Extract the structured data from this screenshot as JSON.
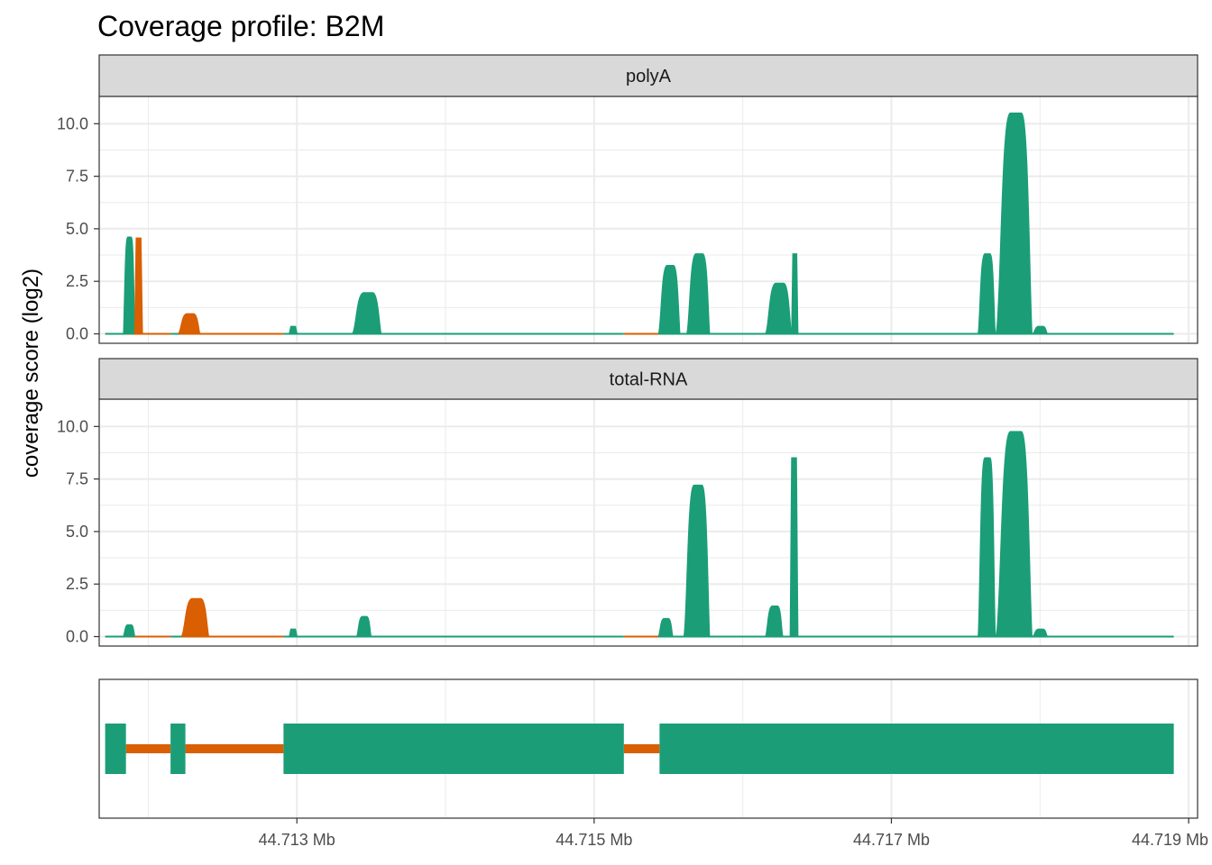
{
  "title": "Coverage profile: B2M",
  "ylabel": "coverage score (log2)",
  "colors": {
    "exon": "#1B9E77",
    "intron": "#D95F02",
    "strip_bg": "#D9D9D9",
    "grid": "#EBEBEB",
    "border": "#333333"
  },
  "chart_data": {
    "type": "area",
    "x_unit": "Mb",
    "xlim": [
      44.71167,
      44.71906
    ],
    "ylim": [
      -0.45,
      11.3
    ],
    "x_ticks": [
      44.713,
      44.715,
      44.717,
      44.719
    ],
    "x_tick_labels": [
      "44.713 Mb",
      "44.715 Mb",
      "44.717 Mb",
      "44.719 Mb"
    ],
    "y_ticks": [
      0,
      2.5,
      5,
      7.5,
      10
    ],
    "y_tick_labels": [
      "0.0",
      "2.5",
      "5.0",
      "7.5",
      "10.0"
    ],
    "grid": true,
    "panels": [
      {
        "label": "polyA",
        "peaks": [
          {
            "x0": 44.71171,
            "x1": 44.71183,
            "height": 0.0,
            "feature": "exon"
          },
          {
            "x0": 44.71183,
            "x1": 44.71191,
            "height": 4.6,
            "feature": "exon"
          },
          {
            "x0": 44.71191,
            "x1": 44.71196,
            "height": 4.55,
            "feature": "intron"
          },
          {
            "x0": 44.71196,
            "x1": 44.7121,
            "height": 0.0,
            "feature": "intron"
          },
          {
            "x0": 44.7121,
            "x1": 44.7122,
            "height": 0.0,
            "feature": "exon"
          },
          {
            "x0": 44.7122,
            "x1": 44.71235,
            "height": 0.95,
            "feature": "intron"
          },
          {
            "x0": 44.71235,
            "x1": 44.7128,
            "height": 0.0,
            "feature": "intron"
          },
          {
            "x0": 44.7128,
            "x1": 44.71295,
            "height": 0.0,
            "feature": "exon"
          },
          {
            "x0": 44.71295,
            "x1": 44.713,
            "height": 0.35,
            "feature": "exon"
          },
          {
            "x0": 44.71337,
            "x1": 44.71357,
            "height": 1.95,
            "feature": "exon"
          },
          {
            "x0": 44.71518,
            "x1": 44.71543,
            "height": 0.0,
            "feature": "intron"
          },
          {
            "x0": 44.71543,
            "x1": 44.71558,
            "height": 3.25,
            "feature": "exon"
          },
          {
            "x0": 44.71562,
            "x1": 44.71578,
            "height": 3.8,
            "feature": "exon"
          },
          {
            "x0": 44.71615,
            "x1": 44.71633,
            "height": 2.4,
            "feature": "exon"
          },
          {
            "x0": 44.71633,
            "x1": 44.71637,
            "height": 3.8,
            "feature": "exon"
          },
          {
            "x0": 44.71758,
            "x1": 44.7177,
            "height": 3.8,
            "feature": "exon"
          },
          {
            "x0": 44.7177,
            "x1": 44.71795,
            "height": 10.5,
            "feature": "exon"
          },
          {
            "x0": 44.71795,
            "x1": 44.71805,
            "height": 0.35,
            "feature": "exon"
          }
        ]
      },
      {
        "label": "total-RNA",
        "peaks": [
          {
            "x0": 44.71183,
            "x1": 44.71191,
            "height": 0.55,
            "feature": "exon"
          },
          {
            "x0": 44.71191,
            "x1": 44.7121,
            "height": 0.0,
            "feature": "intron"
          },
          {
            "x0": 44.71222,
            "x1": 44.71241,
            "height": 1.8,
            "feature": "intron"
          },
          {
            "x0": 44.71241,
            "x1": 44.7128,
            "height": 0.0,
            "feature": "intron"
          },
          {
            "x0": 44.71295,
            "x1": 44.713,
            "height": 0.35,
            "feature": "exon"
          },
          {
            "x0": 44.7134,
            "x1": 44.7135,
            "height": 0.95,
            "feature": "exon"
          },
          {
            "x0": 44.71518,
            "x1": 44.71543,
            "height": 0.0,
            "feature": "intron"
          },
          {
            "x0": 44.71543,
            "x1": 44.71553,
            "height": 0.85,
            "feature": "exon"
          },
          {
            "x0": 44.7156,
            "x1": 44.71578,
            "height": 7.2,
            "feature": "exon"
          },
          {
            "x0": 44.71615,
            "x1": 44.71627,
            "height": 1.45,
            "feature": "exon"
          },
          {
            "x0": 44.71632,
            "x1": 44.71637,
            "height": 8.5,
            "feature": "exon"
          },
          {
            "x0": 44.71758,
            "x1": 44.7177,
            "height": 8.5,
            "feature": "exon"
          },
          {
            "x0": 44.7177,
            "x1": 44.71795,
            "height": 9.75,
            "feature": "exon"
          },
          {
            "x0": 44.71795,
            "x1": 44.71805,
            "height": 0.35,
            "feature": "exon"
          }
        ]
      }
    ],
    "gene_model": {
      "exons": [
        [
          44.71171,
          44.71185
        ],
        [
          44.71215,
          44.71225
        ],
        [
          44.71291,
          44.7152
        ],
        [
          44.71544,
          44.7189
        ]
      ],
      "introns": [
        [
          44.71185,
          44.71215
        ],
        [
          44.71225,
          44.71291
        ],
        [
          44.7152,
          44.71544
        ]
      ]
    }
  }
}
